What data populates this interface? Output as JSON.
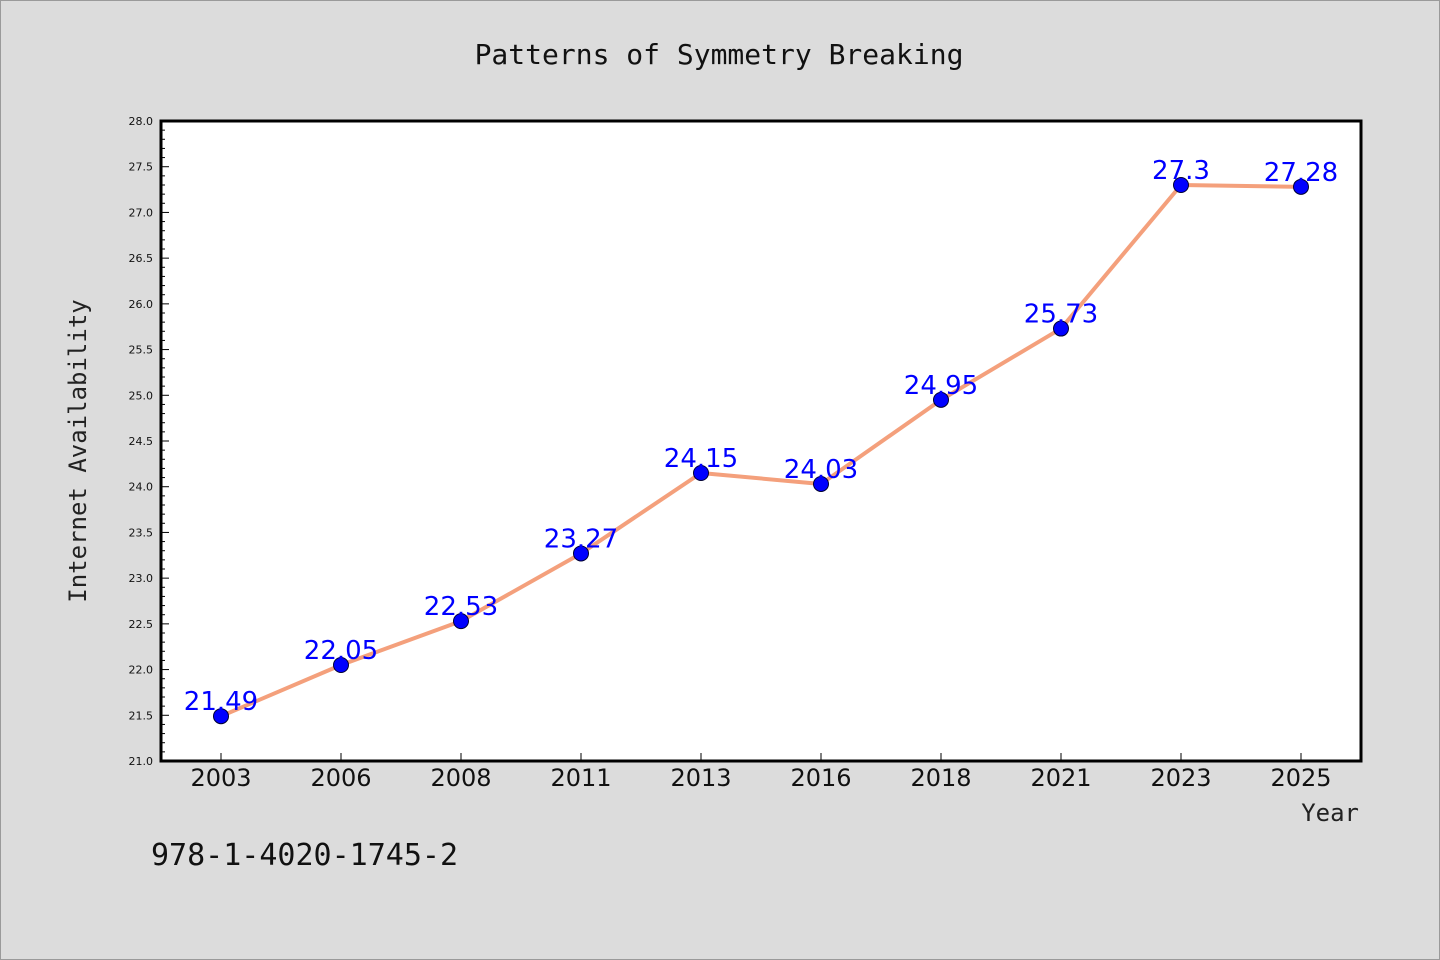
{
  "chart_data": {
    "type": "line",
    "title": "Patterns of Symmetry Breaking",
    "xlabel": "Year",
    "ylabel": "Internet Availability",
    "categories": [
      "2003",
      "2006",
      "2008",
      "2011",
      "2013",
      "2016",
      "2018",
      "2021",
      "2023",
      "2025"
    ],
    "values": [
      21.49,
      22.05,
      22.53,
      23.27,
      24.15,
      24.03,
      24.95,
      25.73,
      27.3,
      27.28
    ],
    "data_labels": [
      "21.49",
      "22.05",
      "22.53",
      "23.27",
      "24.15",
      "24.03",
      "24.95",
      "25.73",
      "27.3",
      "27.28"
    ],
    "ylim": [
      21.0,
      28.0
    ],
    "yticks": [
      "21.0",
      "21.5",
      "22.0",
      "22.5",
      "23.0",
      "23.5",
      "24.0",
      "24.5",
      "25.0",
      "25.5",
      "26.0",
      "26.5",
      "27.0",
      "27.5",
      "28.0"
    ],
    "grid": false,
    "legend": "none",
    "line_color": "#f4a07c",
    "marker_color": "#0000ff",
    "label_color": "#0000ff",
    "annotation": "978-1-4020-1745-2"
  }
}
